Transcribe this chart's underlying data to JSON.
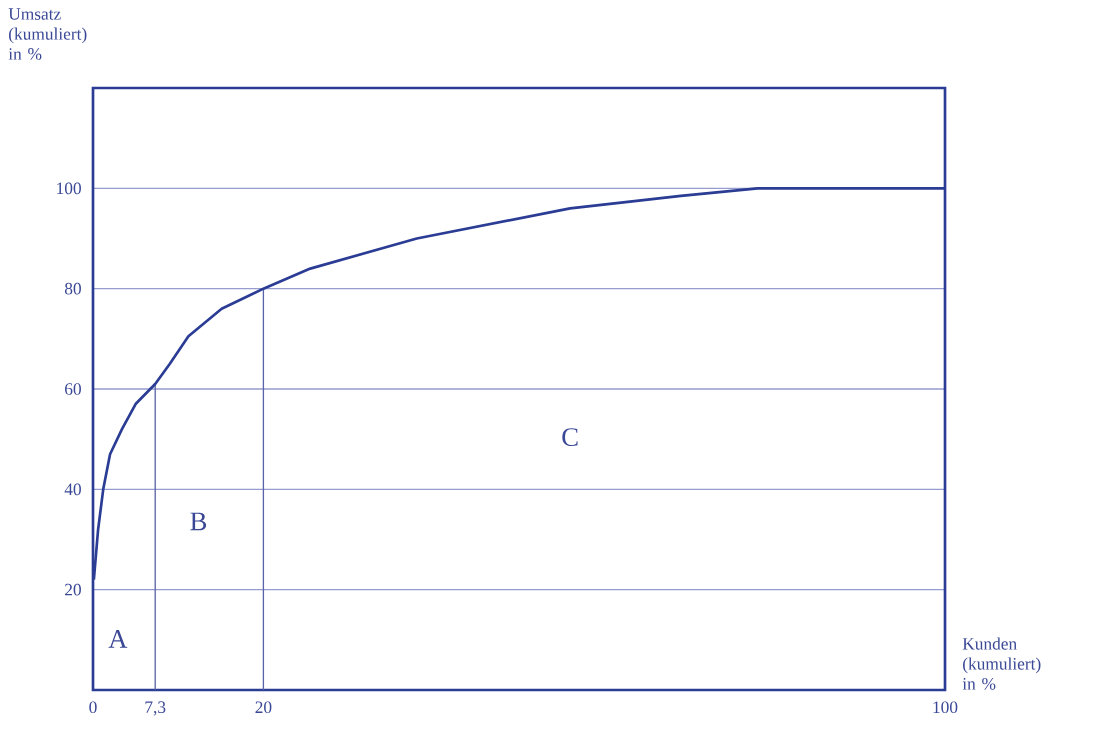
{
  "chart_data": {
    "type": "line",
    "xlabel": "Kunden (kumuliert) in %",
    "ylabel": "Umsatz (kumuliert) in %",
    "xlim": [
      0,
      100
    ],
    "ylim": [
      0,
      120
    ],
    "xticks": [
      0,
      {
        "value": 7.3,
        "label": "7,3"
      },
      20,
      100
    ],
    "yticks": [
      20,
      40,
      60,
      80,
      100
    ],
    "grid": "y",
    "series": [
      {
        "color": "#2b3c94",
        "x": [
          0.1,
          0.6,
          1.2,
          2,
          3.4,
          5,
          7.3,
          9,
          11.2,
          15.1,
          20,
          25.5,
          38,
          56,
          69,
          78,
          100
        ],
        "values": [
          22,
          32,
          40,
          47,
          52,
          57,
          61,
          65,
          70.5,
          76,
          80,
          84,
          90,
          96,
          98.5,
          100,
          100
        ]
      }
    ],
    "ref_lines": [
      {
        "axis": "x",
        "value": 7.3,
        "color": "#5a64a8"
      },
      {
        "axis": "x",
        "value": 20,
        "color": "#5a64a8"
      }
    ],
    "annotations": [
      "A",
      "B",
      "C"
    ]
  }
}
